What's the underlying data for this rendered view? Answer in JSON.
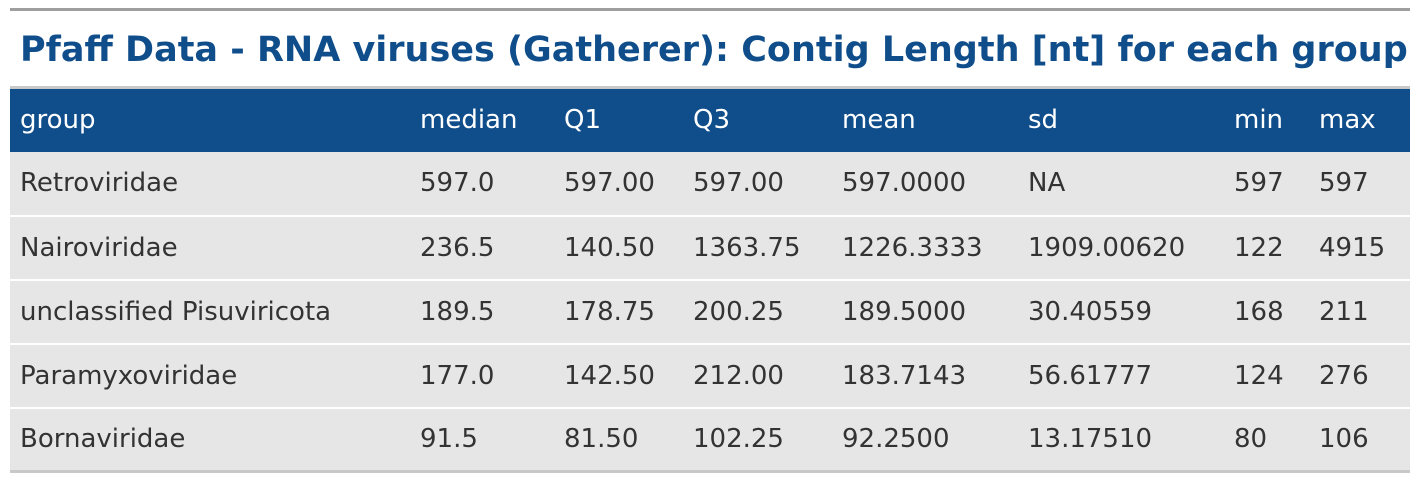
{
  "title": "Pfaff Data - RNA viruses (Gatherer): Contig Length [nt] for each group",
  "table": {
    "columns": [
      "group",
      "median",
      "Q1",
      "Q3",
      "mean",
      "sd",
      "min",
      "max"
    ],
    "rows": [
      [
        "Retroviridae",
        "597.0",
        "597.00",
        "597.00",
        "597.0000",
        "NA",
        "597",
        "597"
      ],
      [
        "Nairoviridae",
        "236.5",
        "140.50",
        "1363.75",
        "1226.3333",
        "1909.00620",
        "122",
        "4915"
      ],
      [
        "unclassified Pisuviricota",
        "189.5",
        "178.75",
        "200.25",
        "189.5000",
        "30.40559",
        "168",
        "211"
      ],
      [
        "Paramyxoviridae",
        "177.0",
        "142.50",
        "212.00",
        "183.7143",
        "56.61777",
        "124",
        "276"
      ],
      [
        "Bornaviridae",
        "91.5",
        "81.50",
        "102.25",
        "92.2500",
        "13.17510",
        "80",
        "106"
      ]
    ]
  },
  "colors": {
    "header_bg": "#104e8b",
    "title_text": "#104e8b",
    "row_bg": "#e6e6e6"
  }
}
